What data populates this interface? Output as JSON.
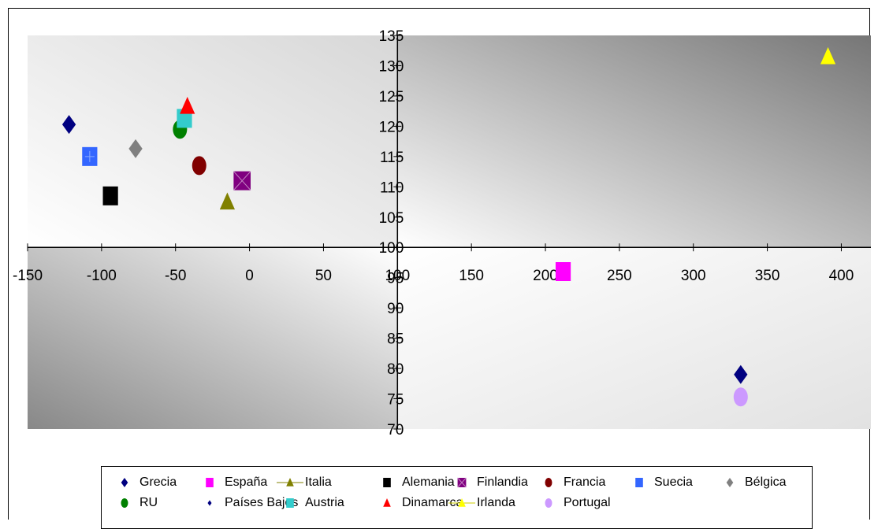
{
  "chart_data": {
    "type": "scatter",
    "title": "",
    "xlabel": "",
    "ylabel": "",
    "xlim": [
      -150,
      420
    ],
    "ylim": [
      70,
      135
    ],
    "x_ticks": [
      -150,
      -100,
      -50,
      0,
      50,
      100,
      150,
      200,
      250,
      300,
      350,
      400
    ],
    "y_ticks": [
      70,
      75,
      80,
      85,
      90,
      95,
      100,
      105,
      110,
      115,
      120,
      125,
      130,
      135
    ],
    "x_tick_labels": [
      "-150",
      "-100",
      "-50",
      "0",
      "50",
      "100",
      "150",
      "200",
      "250",
      "300",
      "350",
      "400"
    ],
    "y_tick_labels": [
      "70",
      "75",
      "80",
      "85",
      "90",
      "95",
      "100",
      "105",
      "110",
      "115",
      "120",
      "125",
      "130",
      "135"
    ],
    "grid": false,
    "legend_position": "bottom",
    "series": [
      {
        "name": "Grecia",
        "marker": "diamond",
        "color": "#000080",
        "points": [
          [
            -122,
            120.3
          ],
          [
            332,
            79
          ]
        ]
      },
      {
        "name": "España",
        "marker": "square",
        "color": "#FF00FF",
        "points": [
          [
            212,
            96
          ]
        ]
      },
      {
        "name": "Italia",
        "marker": "triangle",
        "color": "#808000",
        "points": [
          [
            -15,
            107.5
          ]
        ]
      },
      {
        "name": "Alemania",
        "marker": "square",
        "color": "#000000",
        "points": [
          [
            -94,
            108.5
          ]
        ]
      },
      {
        "name": "Finlandia",
        "marker": "square-x",
        "color": "#800080",
        "points": [
          [
            -5,
            111
          ]
        ]
      },
      {
        "name": "Francia",
        "marker": "circle",
        "color": "#800000",
        "points": [
          [
            -34,
            113.5
          ]
        ]
      },
      {
        "name": "Suecia",
        "marker": "square",
        "color": "#3366FF",
        "points": [
          [
            -108,
            115
          ]
        ]
      },
      {
        "name": "Bélgica",
        "marker": "diamond",
        "color": "#808080",
        "points": [
          [
            -77,
            116.3
          ]
        ]
      },
      {
        "name": "RU",
        "marker": "circle",
        "color": "#008000",
        "points": [
          [
            -47,
            119.5
          ]
        ]
      },
      {
        "name": "Países Bajos",
        "marker": "diamond-small",
        "color": "#000080",
        "points": []
      },
      {
        "name": "Austria",
        "marker": "square",
        "color": "#33CCCC",
        "points": [
          [
            -44,
            121.3
          ]
        ]
      },
      {
        "name": "Dinamarca",
        "marker": "triangle",
        "color": "#FF0000",
        "points": [
          [
            -42,
            123.3
          ]
        ]
      },
      {
        "name": "Irlanda",
        "marker": "triangle",
        "color": "#FFFF00",
        "points": [
          [
            391,
            131.5
          ]
        ]
      },
      {
        "name": "Portugal",
        "marker": "circle",
        "color": "#CC99FF",
        "points": [
          [
            332,
            75.3
          ]
        ]
      }
    ]
  }
}
